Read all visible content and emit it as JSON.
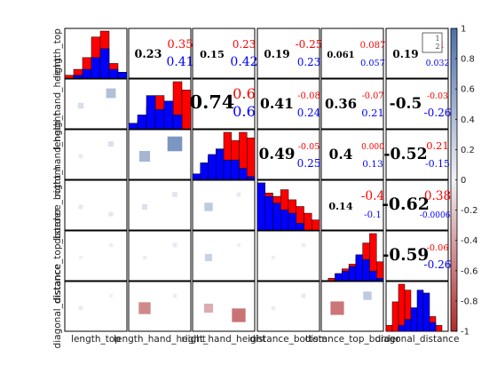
{
  "chart_data": {
    "type": "corrplot-matrix",
    "variables": [
      "length_top",
      "length_hand_height",
      "right_hand_height",
      "distance_bottom",
      "distance_top_border",
      "diagonal_distance"
    ],
    "row_labels": [
      "length_top",
      "length_hand_height",
      "right_hand_height",
      "distance_bottom",
      "distance_top_border",
      "diagonal_distance"
    ],
    "col_labels": [
      "length_top",
      "length_hand_height",
      "right_hand_height",
      "distance_bottom",
      "distance_top_border",
      "diagonal_distance"
    ],
    "upper_overall": [
      [
        null,
        "0.23",
        "0.15",
        "0.19",
        "0.061",
        "0.19"
      ],
      [
        null,
        null,
        "0.74",
        "0.41",
        "0.36",
        "-0.5"
      ],
      [
        null,
        null,
        null,
        "0.49",
        "0.4",
        "-0.52"
      ],
      [
        null,
        null,
        null,
        null,
        "0.14",
        "-0.62"
      ],
      [
        null,
        null,
        null,
        null,
        null,
        "-0.59"
      ]
    ],
    "upper_group_red": [
      [
        null,
        "0.35",
        "0.23",
        "-0.25",
        "0.087",
        "0.1"
      ],
      [
        null,
        null,
        "0.6",
        "-0.08",
        "-0.07",
        "-0.03"
      ],
      [
        null,
        null,
        null,
        "-0.05",
        "0.000",
        "0.21"
      ],
      [
        null,
        null,
        null,
        null,
        "-0.4",
        "0.38"
      ],
      [
        null,
        null,
        null,
        null,
        null,
        "-0.06"
      ]
    ],
    "upper_group_blue": [
      [
        null,
        "0.41",
        "0.42",
        "0.23",
        "0.057",
        "0.032"
      ],
      [
        null,
        null,
        "0.6",
        "0.24",
        "0.21",
        "-0.26"
      ],
      [
        null,
        null,
        null,
        "0.25",
        "0.13",
        "-0.15"
      ],
      [
        null,
        null,
        null,
        null,
        "-0.1",
        "-0.00065"
      ],
      [
        null,
        null,
        null,
        null,
        null,
        "-0.26"
      ]
    ],
    "lower_squares": [
      [],
      [
        [
          0.1,
          0.14
        ],
        [
          0.55,
          0.38
        ],
        [
          0.8,
          0.27
        ]
      ],
      [
        [
          0.12,
          0.04
        ],
        [
          0.78,
          0.12
        ],
        [
          0.91,
          0.45
        ],
        [
          0.5,
          0.7
        ],
        [
          0.64,
          0.13
        ],
        [
          0.92,
          0.23
        ]
      ],
      [
        [
          0.18,
          -0.05
        ],
        [
          0.88,
          -0.06
        ],
        [
          0.85,
          0.12
        ],
        [
          0.14,
          0.09
        ],
        [
          0.43,
          0.3
        ],
        [
          0.87,
          0.05
        ],
        [
          0.07,
          0.02
        ],
        [
          0.22,
          0.01
        ],
        [
          0.2,
          0.02
        ],
        [
          0.7,
          -0.4
        ]
      ],
      [
        [
          0.13,
          0.0
        ],
        [
          0.92,
          0.02
        ],
        [
          0.17,
          0.02
        ],
        [
          0.1,
          0.05
        ],
        [
          0.5,
          0.23
        ],
        [
          0.18,
          0.0
        ],
        [
          0.16,
          0.01
        ],
        [
          0.09,
          0.02
        ],
        [
          0.7,
          0.02
        ],
        [
          0.52,
          -0.85
        ],
        [
          0.83,
          -0.85
        ]
      ],
      [
        [
          0.22,
          0.04
        ],
        [
          0.86,
          0.0
        ],
        [
          0.4,
          -0.52
        ],
        [
          0.1,
          0.03
        ],
        [
          0.6,
          -0.34
        ],
        [
          0.4,
          -0.63
        ],
        [
          0.16,
          -0.03
        ],
        [
          0.06,
          0.05
        ],
        [
          0.53,
          -0.62
        ],
        [
          0.8,
          0.3
        ],
        [
          0.35,
          -0.7
        ],
        [
          0.75,
          0.0
        ]
      ]
    ],
    "histograms": [
      {
        "red": [
          1,
          3,
          7,
          14,
          16,
          5,
          2
        ],
        "blue": [
          0,
          1,
          3,
          7,
          10,
          3,
          2
        ]
      },
      {
        "red": [
          0,
          3,
          8,
          12,
          9,
          17,
          14
        ],
        "blue": [
          2,
          5,
          12,
          7,
          10,
          5,
          0
        ]
      },
      {
        "red": [
          0,
          5,
          8,
          11,
          17,
          14,
          17,
          15
        ],
        "blue": [
          2,
          6,
          9,
          11,
          7,
          7,
          4,
          1
        ]
      },
      {
        "red": [
          14,
          11,
          10,
          12,
          9,
          7,
          5,
          3
        ],
        "blue": [
          14,
          10,
          8,
          6,
          5,
          2,
          0,
          0
        ]
      },
      {
        "red": [
          0,
          1,
          3,
          5,
          7,
          10,
          16,
          20,
          8
        ],
        "blue": [
          0,
          0,
          3,
          4,
          6,
          11,
          9,
          4,
          1
        ]
      },
      {
        "red": [
          2,
          10,
          16,
          14,
          4,
          2,
          1,
          5,
          2,
          0
        ],
        "blue": [
          0,
          0,
          2,
          4,
          8,
          14,
          13,
          3,
          0
        ]
      }
    ],
    "colorbar": {
      "ticks": [
        "1",
        "0.8",
        "0.6",
        "0.4",
        "0.2",
        "0",
        "-0.2",
        "-0.4",
        "-0.6",
        "-0.8",
        "-1"
      ],
      "range": [
        -1,
        1
      ]
    },
    "legend": {
      "entries": [
        "1",
        "2"
      ],
      "position": "top-right"
    },
    "colors": {
      "group1": "#ff0000",
      "group2": "#0000ff",
      "positive": "#5277b0",
      "negative": "#b23b3b"
    }
  }
}
